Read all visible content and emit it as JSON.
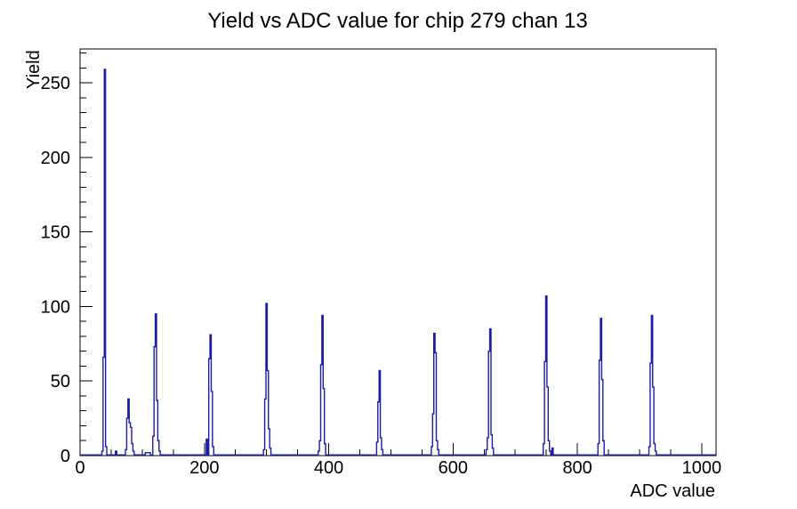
{
  "window": {
    "background": "#ffffff"
  },
  "chart_data": {
    "type": "bar",
    "subtype": "step-histogram",
    "title": "Yield vs ADC value for chip 279 chan 13",
    "xlabel": "ADC value",
    "ylabel": "Yield",
    "xlim": [
      0,
      1023
    ],
    "ylim": [
      0,
      272.7
    ],
    "grid": false,
    "legend_position": "none",
    "line_color": "#1c1ca6",
    "axis_color": "#000000",
    "x_major_ticks": [
      0,
      200,
      400,
      600,
      800,
      1000
    ],
    "x_tick_labels": [
      "0",
      "200",
      "400",
      "600",
      "800",
      "1000"
    ],
    "x_minor_step": 50,
    "y_major_ticks": [
      0,
      50,
      100,
      150,
      200,
      250
    ],
    "y_tick_labels": [
      "0",
      "50",
      "100",
      "150",
      "200",
      "250"
    ],
    "y_minor_step": 10,
    "bin_width": 2,
    "bins": [
      [
        36,
        3
      ],
      [
        38,
        66
      ],
      [
        40,
        259
      ],
      [
        42,
        6
      ],
      [
        58,
        3
      ],
      [
        74,
        4
      ],
      [
        76,
        25
      ],
      [
        78,
        38
      ],
      [
        80,
        22
      ],
      [
        82,
        19
      ],
      [
        84,
        8
      ],
      [
        86,
        3
      ],
      [
        106,
        2
      ],
      [
        108,
        2
      ],
      [
        110,
        2
      ],
      [
        112,
        2
      ],
      [
        118,
        13
      ],
      [
        120,
        73
      ],
      [
        122,
        95
      ],
      [
        124,
        37
      ],
      [
        126,
        10
      ],
      [
        128,
        3
      ],
      [
        204,
        11
      ],
      [
        208,
        65
      ],
      [
        210,
        81
      ],
      [
        212,
        43
      ],
      [
        214,
        6
      ],
      [
        296,
        4
      ],
      [
        298,
        38
      ],
      [
        300,
        102
      ],
      [
        302,
        57
      ],
      [
        304,
        18
      ],
      [
        306,
        5
      ],
      [
        384,
        3
      ],
      [
        386,
        10
      ],
      [
        388,
        61
      ],
      [
        390,
        94
      ],
      [
        392,
        45
      ],
      [
        394,
        8
      ],
      [
        478,
        9
      ],
      [
        480,
        36
      ],
      [
        482,
        57
      ],
      [
        484,
        12
      ],
      [
        486,
        4
      ],
      [
        566,
        6
      ],
      [
        568,
        28
      ],
      [
        570,
        82
      ],
      [
        572,
        69
      ],
      [
        574,
        10
      ],
      [
        576,
        4
      ],
      [
        654,
        4
      ],
      [
        656,
        12
      ],
      [
        658,
        70
      ],
      [
        660,
        85
      ],
      [
        662,
        14
      ],
      [
        664,
        5
      ],
      [
        746,
        8
      ],
      [
        748,
        63
      ],
      [
        750,
        107
      ],
      [
        752,
        46
      ],
      [
        754,
        10
      ],
      [
        756,
        3
      ],
      [
        760,
        5
      ],
      [
        834,
        8
      ],
      [
        836,
        64
      ],
      [
        838,
        92
      ],
      [
        840,
        51
      ],
      [
        842,
        10
      ],
      [
        916,
        6
      ],
      [
        918,
        62
      ],
      [
        920,
        94
      ],
      [
        922,
        46
      ],
      [
        924,
        8
      ],
      [
        926,
        3
      ]
    ]
  }
}
